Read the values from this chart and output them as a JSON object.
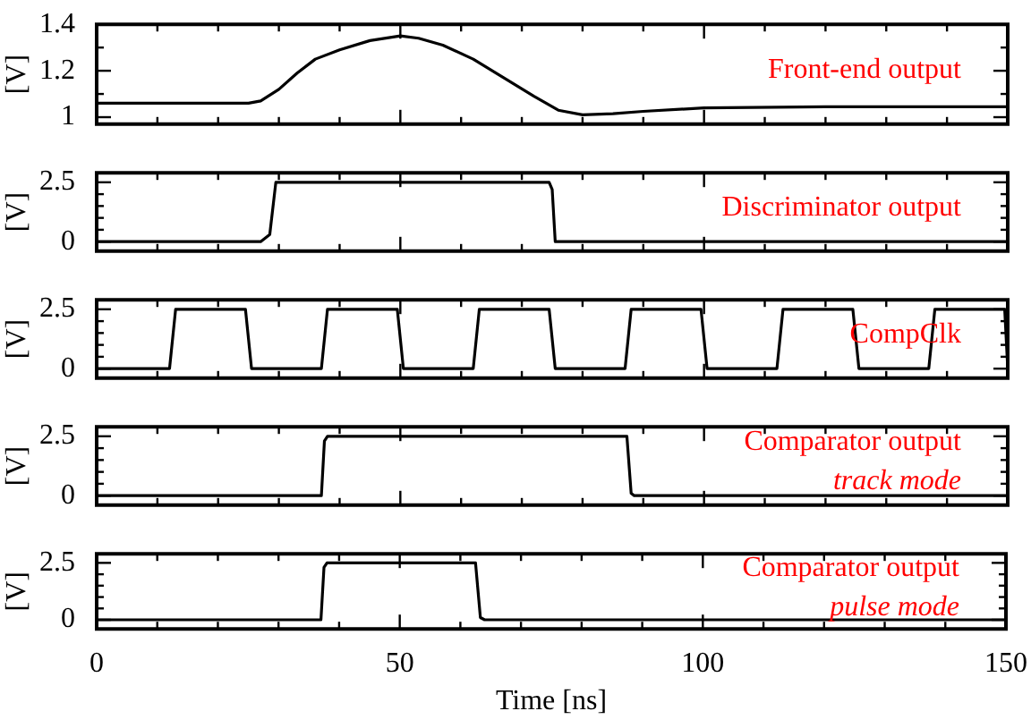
{
  "chart_data": [
    {
      "type": "line",
      "ylabel": "[V]",
      "annotations": [
        "Front-end output"
      ],
      "tick_labels": "y",
      "xlim": [
        0,
        150
      ],
      "xticks": [
        0,
        {
          "value": 10,
          "label": null
        },
        {
          "value": 20,
          "label": null
        },
        {
          "value": 30,
          "label": null
        },
        {
          "value": 40,
          "label": null
        },
        50,
        {
          "value": 60,
          "label": null
        },
        {
          "value": 70,
          "label": null
        },
        {
          "value": 80,
          "label": null
        },
        {
          "value": 90,
          "label": null
        },
        100,
        {
          "value": 110,
          "label": null
        },
        {
          "value": 120,
          "label": null
        },
        {
          "value": 130,
          "label": null
        },
        {
          "value": 140,
          "label": null
        },
        150
      ],
      "ylim": [
        0.97,
        1.4
      ],
      "yticks": [
        1,
        {
          "value": 1.1,
          "label": null
        },
        1.2,
        {
          "value": 1.3,
          "label": null
        },
        1.4
      ],
      "color": "#000000",
      "x": [
        0,
        25,
        27,
        30,
        33,
        36,
        40,
        45,
        50,
        53,
        57,
        62,
        67,
        72,
        76,
        80,
        85,
        90,
        100,
        120,
        150
      ],
      "values": [
        1.06,
        1.06,
        1.07,
        1.12,
        1.19,
        1.25,
        1.29,
        1.33,
        1.35,
        1.34,
        1.31,
        1.25,
        1.17,
        1.09,
        1.03,
        1.01,
        1.015,
        1.025,
        1.04,
        1.045,
        1.045
      ]
    },
    {
      "type": "line",
      "ylabel": "[V]",
      "annotations": [
        "Discriminator output"
      ],
      "tick_labels": "y",
      "xlim": [
        0,
        150
      ],
      "xticks": [
        0,
        {
          "value": 10,
          "label": null
        },
        {
          "value": 20,
          "label": null
        },
        {
          "value": 30,
          "label": null
        },
        {
          "value": 40,
          "label": null
        },
        50,
        {
          "value": 60,
          "label": null
        },
        {
          "value": 70,
          "label": null
        },
        {
          "value": 80,
          "label": null
        },
        {
          "value": 90,
          "label": null
        },
        100,
        {
          "value": 110,
          "label": null
        },
        {
          "value": 120,
          "label": null
        },
        {
          "value": 130,
          "label": null
        },
        {
          "value": 140,
          "label": null
        },
        150
      ],
      "ylim": [
        -0.4,
        2.9
      ],
      "yticks": [
        0,
        {
          "value": 0.5,
          "label": null
        },
        {
          "value": 1,
          "label": null
        },
        {
          "value": 1.5,
          "label": null
        },
        {
          "value": 2,
          "label": null
        },
        2.5
      ],
      "color": "#000000",
      "x": [
        0,
        27,
        28.5,
        29.5,
        74.5,
        75,
        75.5,
        150
      ],
      "values": [
        0,
        0,
        0.3,
        2.5,
        2.5,
        2.2,
        0,
        0
      ]
    },
    {
      "type": "line",
      "ylabel": "[V]",
      "annotations": [
        "CompClk"
      ],
      "tick_labels": "y",
      "xlim": [
        0,
        150
      ],
      "xticks": [
        0,
        {
          "value": 10,
          "label": null
        },
        {
          "value": 20,
          "label": null
        },
        {
          "value": 30,
          "label": null
        },
        {
          "value": 40,
          "label": null
        },
        50,
        {
          "value": 60,
          "label": null
        },
        {
          "value": 70,
          "label": null
        },
        {
          "value": 80,
          "label": null
        },
        {
          "value": 90,
          "label": null
        },
        100,
        {
          "value": 110,
          "label": null
        },
        {
          "value": 120,
          "label": null
        },
        {
          "value": 130,
          "label": null
        },
        {
          "value": 140,
          "label": null
        },
        150
      ],
      "ylim": [
        -0.4,
        2.9
      ],
      "yticks": [
        0,
        {
          "value": 0.5,
          "label": null
        },
        {
          "value": 1,
          "label": null
        },
        {
          "value": 1.5,
          "label": null
        },
        {
          "value": 2,
          "label": null
        },
        2.5
      ],
      "color": "#000000",
      "x": [
        0,
        12,
        13,
        24.5,
        25.5,
        37,
        38,
        49.5,
        50.5,
        62,
        63,
        74.5,
        75.5,
        87,
        88,
        99.5,
        100.5,
        112,
        113,
        124.5,
        125.5,
        137,
        138,
        149.5,
        150
      ],
      "values": [
        0,
        0,
        2.5,
        2.5,
        0,
        0,
        2.5,
        2.5,
        0,
        0,
        2.5,
        2.5,
        0,
        0,
        2.5,
        2.5,
        0,
        0,
        2.5,
        2.5,
        0,
        0,
        2.5,
        2.5,
        0
      ]
    },
    {
      "type": "line",
      "ylabel": "[V]",
      "annotations": [
        "Comparator output",
        "track mode"
      ],
      "tick_labels": "y",
      "xlim": [
        0,
        150
      ],
      "xticks": [
        0,
        {
          "value": 10,
          "label": null
        },
        {
          "value": 20,
          "label": null
        },
        {
          "value": 30,
          "label": null
        },
        {
          "value": 40,
          "label": null
        },
        50,
        {
          "value": 60,
          "label": null
        },
        {
          "value": 70,
          "label": null
        },
        {
          "value": 80,
          "label": null
        },
        {
          "value": 90,
          "label": null
        },
        100,
        {
          "value": 110,
          "label": null
        },
        {
          "value": 120,
          "label": null
        },
        {
          "value": 130,
          "label": null
        },
        {
          "value": 140,
          "label": null
        },
        150
      ],
      "ylim": [
        -0.4,
        2.9
      ],
      "yticks": [
        0,
        {
          "value": 0.5,
          "label": null
        },
        {
          "value": 1,
          "label": null
        },
        {
          "value": 1.5,
          "label": null
        },
        {
          "value": 2,
          "label": null
        },
        2.5
      ],
      "color": "#000000",
      "x": [
        0,
        37,
        37.5,
        38,
        87.3,
        88,
        88.5,
        150
      ],
      "values": [
        0,
        0,
        2.3,
        2.5,
        2.5,
        0.1,
        0,
        0
      ]
    },
    {
      "type": "line",
      "ylabel": "[V]",
      "xlabel": "Time [ns]",
      "annotations": [
        "Comparator output",
        "pulse mode"
      ],
      "xlim": [
        0,
        150
      ],
      "xticks": [
        0,
        {
          "value": 10,
          "label": null
        },
        {
          "value": 20,
          "label": null
        },
        {
          "value": 30,
          "label": null
        },
        {
          "value": 40,
          "label": null
        },
        50,
        {
          "value": 60,
          "label": null
        },
        {
          "value": 70,
          "label": null
        },
        {
          "value": 80,
          "label": null
        },
        {
          "value": 90,
          "label": null
        },
        100,
        {
          "value": 110,
          "label": null
        },
        {
          "value": 120,
          "label": null
        },
        {
          "value": 130,
          "label": null
        },
        {
          "value": 140,
          "label": null
        },
        150
      ],
      "ylim": [
        -0.4,
        2.9
      ],
      "yticks": [
        0,
        {
          "value": 0.5,
          "label": null
        },
        {
          "value": 1,
          "label": null
        },
        {
          "value": 1.5,
          "label": null
        },
        {
          "value": 2,
          "label": null
        },
        2.5
      ],
      "color": "#000000",
      "x": [
        0,
        37,
        37.5,
        38,
        62.5,
        63.3,
        64,
        150
      ],
      "values": [
        0,
        0,
        2.3,
        2.5,
        2.5,
        0.1,
        0,
        0
      ]
    }
  ]
}
